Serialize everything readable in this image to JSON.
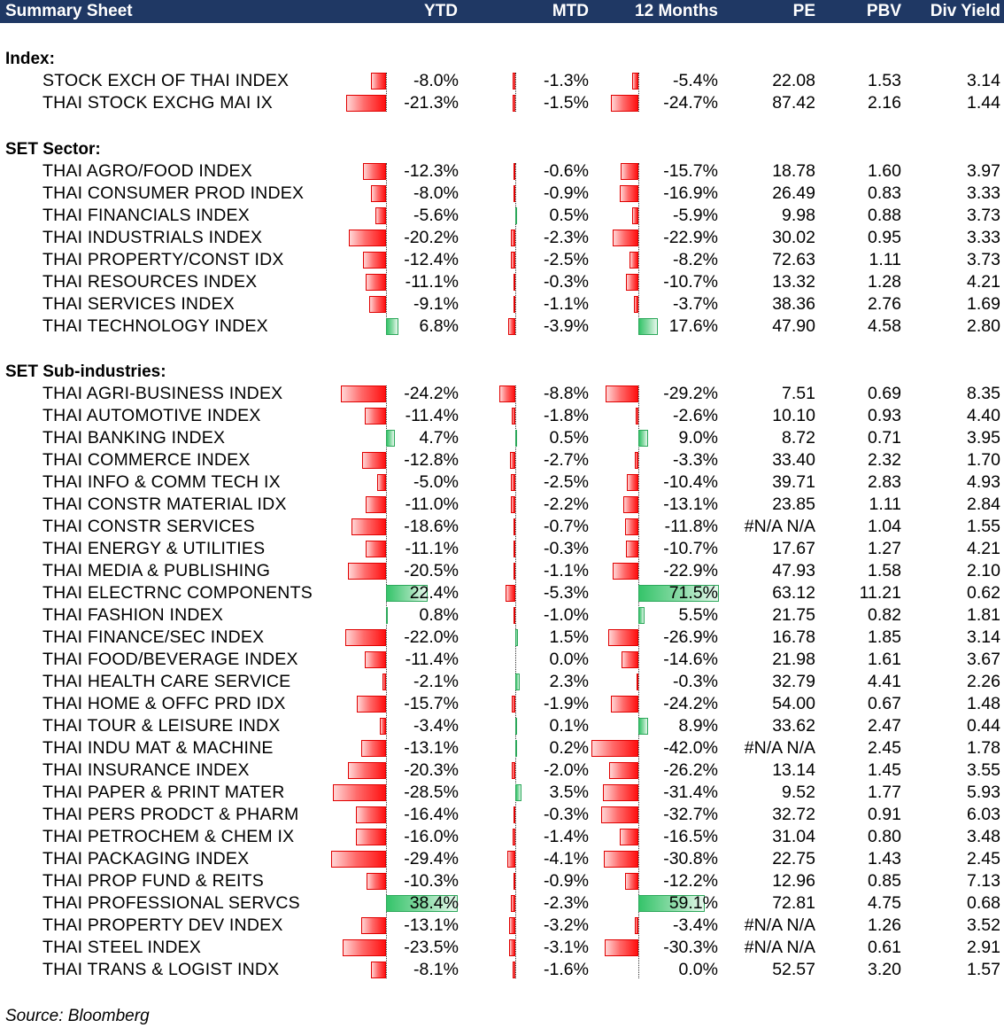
{
  "header": {
    "title": "Summary Sheet",
    "col_ytd": "YTD",
    "col_mtd": "MTD",
    "col_12m": "12 Months",
    "col_pe": "PE",
    "col_pbv": "PBV",
    "col_div": "Div Yield"
  },
  "colors": {
    "header_bg": "#1f3864",
    "negative_bar": "#ff1010",
    "positive_bar": "#35c46a"
  },
  "sections": [
    {
      "title": "Index:",
      "rows": [
        {
          "name": "STOCK EXCH OF THAI INDEX",
          "ytd": -8.0,
          "ytd_text": "-8.0%",
          "mtd": -1.3,
          "mtd_text": "-1.3%",
          "m12": -5.4,
          "m12_text": "-5.4%",
          "pe": "22.08",
          "pbv": "1.53",
          "div": "3.14"
        },
        {
          "name": "THAI STOCK EXCHG MAI IX",
          "ytd": -21.3,
          "ytd_text": "-21.3%",
          "mtd": -1.5,
          "mtd_text": "-1.5%",
          "m12": -24.7,
          "m12_text": "-24.7%",
          "pe": "87.42",
          "pbv": "2.16",
          "div": "1.44"
        }
      ]
    },
    {
      "title": "SET Sector:",
      "rows": [
        {
          "name": "THAI AGRO/FOOD INDEX",
          "ytd": -12.3,
          "ytd_text": "-12.3%",
          "mtd": -0.6,
          "mtd_text": "-0.6%",
          "m12": -15.7,
          "m12_text": "-15.7%",
          "pe": "18.78",
          "pbv": "1.60",
          "div": "3.97"
        },
        {
          "name": "THAI CONSUMER PROD INDEX",
          "ytd": -8.0,
          "ytd_text": "-8.0%",
          "mtd": -0.9,
          "mtd_text": "-0.9%",
          "m12": -16.9,
          "m12_text": "-16.9%",
          "pe": "26.49",
          "pbv": "0.83",
          "div": "3.33"
        },
        {
          "name": "THAI FINANCIALS INDEX",
          "ytd": -5.6,
          "ytd_text": "-5.6%",
          "mtd": 0.5,
          "mtd_text": "0.5%",
          "m12": -5.9,
          "m12_text": "-5.9%",
          "pe": "9.98",
          "pbv": "0.88",
          "div": "3.73"
        },
        {
          "name": "THAI INDUSTRIALS INDEX",
          "ytd": -20.2,
          "ytd_text": "-20.2%",
          "mtd": -2.3,
          "mtd_text": "-2.3%",
          "m12": -22.9,
          "m12_text": "-22.9%",
          "pe": "30.02",
          "pbv": "0.95",
          "div": "3.33"
        },
        {
          "name": "THAI PROPERTY/CONST IDX",
          "ytd": -12.4,
          "ytd_text": "-12.4%",
          "mtd": -2.5,
          "mtd_text": "-2.5%",
          "m12": -8.2,
          "m12_text": "-8.2%",
          "pe": "72.63",
          "pbv": "1.11",
          "div": "3.73"
        },
        {
          "name": "THAI RESOURCES INDEX",
          "ytd": -11.1,
          "ytd_text": "-11.1%",
          "mtd": -0.3,
          "mtd_text": "-0.3%",
          "m12": -10.7,
          "m12_text": "-10.7%",
          "pe": "13.32",
          "pbv": "1.28",
          "div": "4.21"
        },
        {
          "name": "THAI SERVICES INDEX",
          "ytd": -9.1,
          "ytd_text": "-9.1%",
          "mtd": -1.1,
          "mtd_text": "-1.1%",
          "m12": -3.7,
          "m12_text": "-3.7%",
          "pe": "38.36",
          "pbv": "2.76",
          "div": "1.69"
        },
        {
          "name": "THAI TECHNOLOGY INDEX",
          "ytd": 6.8,
          "ytd_text": "6.8%",
          "mtd": -3.9,
          "mtd_text": "-3.9%",
          "m12": 17.6,
          "m12_text": "17.6%",
          "pe": "47.90",
          "pbv": "4.58",
          "div": "2.80"
        }
      ]
    },
    {
      "title": "SET Sub-industries:",
      "rows": [
        {
          "name": "THAI AGRI-BUSINESS INDEX",
          "ytd": -24.2,
          "ytd_text": "-24.2%",
          "mtd": -8.8,
          "mtd_text": "-8.8%",
          "m12": -29.2,
          "m12_text": "-29.2%",
          "pe": "7.51",
          "pbv": "0.69",
          "div": "8.35"
        },
        {
          "name": "THAI AUTOMOTIVE INDEX",
          "ytd": -11.4,
          "ytd_text": "-11.4%",
          "mtd": -1.8,
          "mtd_text": "-1.8%",
          "m12": -2.6,
          "m12_text": "-2.6%",
          "pe": "10.10",
          "pbv": "0.93",
          "div": "4.40"
        },
        {
          "name": "THAI BANKING INDEX",
          "ytd": 4.7,
          "ytd_text": "4.7%",
          "mtd": 0.5,
          "mtd_text": "0.5%",
          "m12": 9.0,
          "m12_text": "9.0%",
          "pe": "8.72",
          "pbv": "0.71",
          "div": "3.95"
        },
        {
          "name": "THAI COMMERCE INDEX",
          "ytd": -12.8,
          "ytd_text": "-12.8%",
          "mtd": -2.7,
          "mtd_text": "-2.7%",
          "m12": -3.3,
          "m12_text": "-3.3%",
          "pe": "33.40",
          "pbv": "2.32",
          "div": "1.70"
        },
        {
          "name": "THAI INFO & COMM TECH IX",
          "ytd": -5.0,
          "ytd_text": "-5.0%",
          "mtd": -2.5,
          "mtd_text": "-2.5%",
          "m12": -10.4,
          "m12_text": "-10.4%",
          "pe": "39.71",
          "pbv": "2.83",
          "div": "4.93"
        },
        {
          "name": "THAI CONSTR MATERIAL IDX",
          "ytd": -11.0,
          "ytd_text": "-11.0%",
          "mtd": -2.2,
          "mtd_text": "-2.2%",
          "m12": -13.1,
          "m12_text": "-13.1%",
          "pe": "23.85",
          "pbv": "1.11",
          "div": "2.84"
        },
        {
          "name": "THAI CONSTR SERVICES",
          "ytd": -18.6,
          "ytd_text": "-18.6%",
          "mtd": -0.7,
          "mtd_text": "-0.7%",
          "m12": -11.8,
          "m12_text": "-11.8%",
          "pe": "#N/A N/A",
          "pbv": "1.04",
          "div": "1.55"
        },
        {
          "name": "THAI ENERGY & UTILITIES",
          "ytd": -11.1,
          "ytd_text": "-11.1%",
          "mtd": -0.3,
          "mtd_text": "-0.3%",
          "m12": -10.7,
          "m12_text": "-10.7%",
          "pe": "17.67",
          "pbv": "1.27",
          "div": "4.21"
        },
        {
          "name": "THAI MEDIA & PUBLISHING",
          "ytd": -20.5,
          "ytd_text": "-20.5%",
          "mtd": -1.1,
          "mtd_text": "-1.1%",
          "m12": -22.9,
          "m12_text": "-22.9%",
          "pe": "47.93",
          "pbv": "1.58",
          "div": "2.10"
        },
        {
          "name": "THAI ELECTRNC COMPONENTS",
          "ytd": 22.4,
          "ytd_text": "22.4%",
          "mtd": -5.3,
          "mtd_text": "-5.3%",
          "m12": 71.5,
          "m12_text": "71.5%",
          "pe": "63.12",
          "pbv": "11.21",
          "div": "0.62"
        },
        {
          "name": "THAI FASHION INDEX",
          "ytd": 0.8,
          "ytd_text": "0.8%",
          "mtd": -1.0,
          "mtd_text": "-1.0%",
          "m12": 5.5,
          "m12_text": "5.5%",
          "pe": "21.75",
          "pbv": "0.82",
          "div": "1.81"
        },
        {
          "name": "THAI FINANCE/SEC INDEX",
          "ytd": -22.0,
          "ytd_text": "-22.0%",
          "mtd": 1.5,
          "mtd_text": "1.5%",
          "m12": -26.9,
          "m12_text": "-26.9%",
          "pe": "16.78",
          "pbv": "1.85",
          "div": "3.14"
        },
        {
          "name": "THAI FOOD/BEVERAGE INDEX",
          "ytd": -11.4,
          "ytd_text": "-11.4%",
          "mtd": 0.0,
          "mtd_text": "0.0%",
          "m12": -14.6,
          "m12_text": "-14.6%",
          "pe": "21.98",
          "pbv": "1.61",
          "div": "3.67"
        },
        {
          "name": "THAI HEALTH CARE SERVICE",
          "ytd": -2.1,
          "ytd_text": "-2.1%",
          "mtd": 2.3,
          "mtd_text": "2.3%",
          "m12": -0.3,
          "m12_text": "-0.3%",
          "pe": "32.79",
          "pbv": "4.41",
          "div": "2.26"
        },
        {
          "name": "THAI HOME & OFFC PRD IDX",
          "ytd": -15.7,
          "ytd_text": "-15.7%",
          "mtd": -1.9,
          "mtd_text": "-1.9%",
          "m12": -24.2,
          "m12_text": "-24.2%",
          "pe": "54.00",
          "pbv": "0.67",
          "div": "1.48"
        },
        {
          "name": "THAI TOUR & LEISURE INDX",
          "ytd": -3.4,
          "ytd_text": "-3.4%",
          "mtd": 0.1,
          "mtd_text": "0.1%",
          "m12": 8.9,
          "m12_text": "8.9%",
          "pe": "33.62",
          "pbv": "2.47",
          "div": "0.44"
        },
        {
          "name": "THAI INDU MAT & MACHINE",
          "ytd": -13.1,
          "ytd_text": "-13.1%",
          "mtd": 0.2,
          "mtd_text": "0.2%",
          "m12": -42.0,
          "m12_text": "-42.0%",
          "pe": "#N/A N/A",
          "pbv": "2.45",
          "div": "1.78"
        },
        {
          "name": "THAI INSURANCE INDEX",
          "ytd": -20.3,
          "ytd_text": "-20.3%",
          "mtd": -2.0,
          "mtd_text": "-2.0%",
          "m12": -26.2,
          "m12_text": "-26.2%",
          "pe": "13.14",
          "pbv": "1.45",
          "div": "3.55"
        },
        {
          "name": "THAI PAPER & PRINT MATER",
          "ytd": -28.5,
          "ytd_text": "-28.5%",
          "mtd": 3.5,
          "mtd_text": "3.5%",
          "m12": -31.4,
          "m12_text": "-31.4%",
          "pe": "9.52",
          "pbv": "1.77",
          "div": "5.93"
        },
        {
          "name": "THAI PERS PRODCT & PHARM",
          "ytd": -16.4,
          "ytd_text": "-16.4%",
          "mtd": -0.3,
          "mtd_text": "-0.3%",
          "m12": -32.7,
          "m12_text": "-32.7%",
          "pe": "32.72",
          "pbv": "0.91",
          "div": "6.03"
        },
        {
          "name": "THAI PETROCHEM & CHEM IX",
          "ytd": -16.0,
          "ytd_text": "-16.0%",
          "mtd": -1.4,
          "mtd_text": "-1.4%",
          "m12": -16.5,
          "m12_text": "-16.5%",
          "pe": "31.04",
          "pbv": "0.80",
          "div": "3.48"
        },
        {
          "name": "THAI PACKAGING INDEX",
          "ytd": -29.4,
          "ytd_text": "-29.4%",
          "mtd": -4.1,
          "mtd_text": "-4.1%",
          "m12": -30.8,
          "m12_text": "-30.8%",
          "pe": "22.75",
          "pbv": "1.43",
          "div": "2.45"
        },
        {
          "name": "THAI PROP FUND & REITS",
          "ytd": -10.3,
          "ytd_text": "-10.3%",
          "mtd": -0.9,
          "mtd_text": "-0.9%",
          "m12": -12.2,
          "m12_text": "-12.2%",
          "pe": "12.96",
          "pbv": "0.85",
          "div": "7.13"
        },
        {
          "name": "THAI PROFESSIONAL SERVCS",
          "ytd": 38.4,
          "ytd_text": "38.4%",
          "mtd": -2.3,
          "mtd_text": "-2.3%",
          "m12": 59.1,
          "m12_text": "59.1%",
          "pe": "72.81",
          "pbv": "4.75",
          "div": "0.68"
        },
        {
          "name": "THAI PROPERTY DEV INDEX",
          "ytd": -13.1,
          "ytd_text": "-13.1%",
          "mtd": -3.2,
          "mtd_text": "-3.2%",
          "m12": -3.4,
          "m12_text": "-3.4%",
          "pe": "#N/A N/A",
          "pbv": "1.26",
          "div": "3.52"
        },
        {
          "name": "THAI STEEL INDEX",
          "ytd": -23.5,
          "ytd_text": "-23.5%",
          "mtd": -3.1,
          "mtd_text": "-3.1%",
          "m12": -30.3,
          "m12_text": "-30.3%",
          "pe": "#N/A N/A",
          "pbv": "0.61",
          "div": "2.91"
        },
        {
          "name": "THAI TRANS & LOGIST INDX",
          "ytd": -8.1,
          "ytd_text": "-8.1%",
          "mtd": -1.6,
          "mtd_text": "-1.6%",
          "m12": 0.0,
          "m12_text": "0.0%",
          "pe": "52.57",
          "pbv": "3.20",
          "div": "1.57"
        }
      ]
    }
  ],
  "footer": {
    "source": "Source: Bloomberg"
  }
}
